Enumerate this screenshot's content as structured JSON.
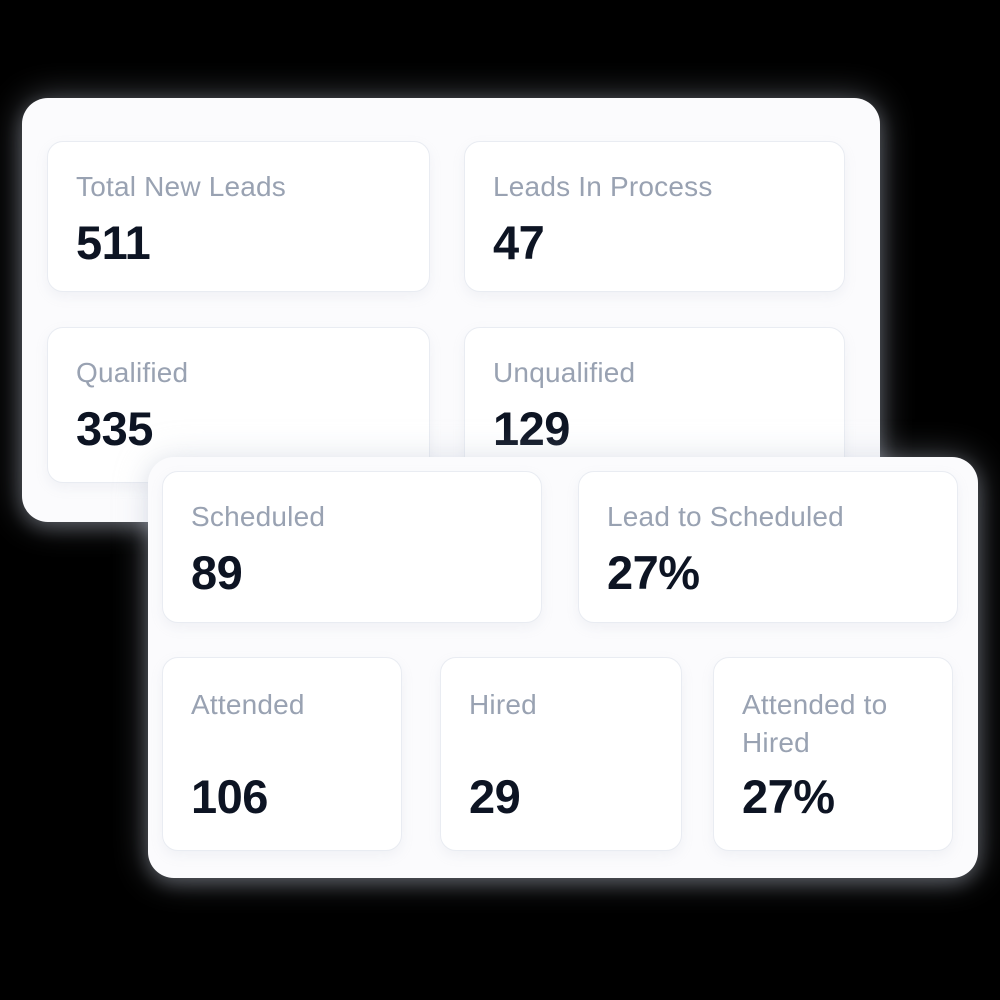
{
  "colors": {
    "background": "#000000",
    "panel_background": "#fbfbfd",
    "card_background": "#ffffff",
    "card_border": "#e9ecf2",
    "label_text": "#99a2b2",
    "value_text": "#0d1423"
  },
  "panels": [
    {
      "name": "leads-summary",
      "cards": [
        {
          "label": "Total New Leads",
          "value": "511"
        },
        {
          "label": "Leads In Process",
          "value": "47"
        },
        {
          "label": "Qualified",
          "value": "335"
        },
        {
          "label": "Unqualified",
          "value": "129"
        }
      ]
    },
    {
      "name": "scheduling-summary",
      "cards": [
        {
          "label": "Scheduled",
          "value": "89"
        },
        {
          "label": "Lead to Scheduled",
          "value": "27%"
        },
        {
          "label": "Attended",
          "value": "106"
        },
        {
          "label": "Hired",
          "value": "29"
        },
        {
          "label": "Attended to Hired",
          "value": "27%"
        }
      ]
    }
  ]
}
